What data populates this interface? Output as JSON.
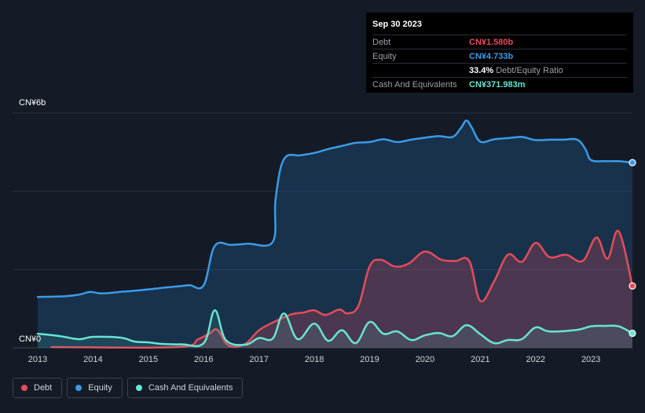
{
  "tooltip": {
    "date": "Sep 30 2023",
    "rows": [
      {
        "label": "Debt",
        "value": "CN¥1.580b",
        "color": "#e64c5a"
      },
      {
        "label": "Equity",
        "value": "CN¥4.733b",
        "color": "#3a9be8"
      },
      {
        "label": "",
        "value": "33.4%",
        "suffix": "Debt/Equity Ratio",
        "color": "#ffffff"
      },
      {
        "label": "Cash And Equivalents",
        "value": "CN¥371.983m",
        "color": "#67e5d2"
      }
    ]
  },
  "legend": [
    {
      "label": "Debt",
      "color": "#e64c5a"
    },
    {
      "label": "Equity",
      "color": "#3a9be8"
    },
    {
      "label": "Cash And Equivalents",
      "color": "#67e5d2"
    }
  ],
  "chart_data": {
    "type": "area",
    "ylabel_top": "CN¥6b",
    "ylabel_bottom": "CN¥0",
    "ylim": [
      0,
      6
    ],
    "xlim": [
      2013,
      2023.75
    ],
    "x_ticks": [
      "2013",
      "2014",
      "2015",
      "2016",
      "2017",
      "2018",
      "2019",
      "2020",
      "2021",
      "2022",
      "2023"
    ],
    "grid": true,
    "series": [
      {
        "name": "Equity",
        "color": "#3a9be8",
        "points": [
          [
            2013.0,
            1.3
          ],
          [
            2013.5,
            1.32
          ],
          [
            2013.75,
            1.36
          ],
          [
            2013.95,
            1.43
          ],
          [
            2014.15,
            1.39
          ],
          [
            2014.5,
            1.43
          ],
          [
            2014.9,
            1.48
          ],
          [
            2015.3,
            1.54
          ],
          [
            2015.6,
            1.58
          ],
          [
            2015.75,
            1.6
          ],
          [
            2016.0,
            1.6
          ],
          [
            2016.2,
            2.6
          ],
          [
            2016.5,
            2.63
          ],
          [
            2016.8,
            2.66
          ],
          [
            2017.25,
            2.71
          ],
          [
            2017.3,
            3.8
          ],
          [
            2017.45,
            4.82
          ],
          [
            2017.75,
            4.92
          ],
          [
            2018.0,
            4.98
          ],
          [
            2018.25,
            5.08
          ],
          [
            2018.5,
            5.16
          ],
          [
            2018.75,
            5.24
          ],
          [
            2019.0,
            5.26
          ],
          [
            2019.25,
            5.33
          ],
          [
            2019.5,
            5.26
          ],
          [
            2019.75,
            5.32
          ],
          [
            2020.0,
            5.37
          ],
          [
            2020.25,
            5.41
          ],
          [
            2020.5,
            5.39
          ],
          [
            2020.65,
            5.62
          ],
          [
            2020.75,
            5.81
          ],
          [
            2020.85,
            5.62
          ],
          [
            2021.0,
            5.27
          ],
          [
            2021.25,
            5.33
          ],
          [
            2021.5,
            5.36
          ],
          [
            2021.75,
            5.39
          ],
          [
            2022.0,
            5.31
          ],
          [
            2022.25,
            5.32
          ],
          [
            2022.5,
            5.32
          ],
          [
            2022.75,
            5.32
          ],
          [
            2022.9,
            5.08
          ],
          [
            2023.0,
            4.8
          ],
          [
            2023.25,
            4.77
          ],
          [
            2023.5,
            4.77
          ],
          [
            2023.75,
            4.733
          ]
        ]
      },
      {
        "name": "Debt",
        "color": "#e64c5a",
        "points": [
          [
            2013.25,
            0.02
          ],
          [
            2015.5,
            0.02
          ],
          [
            2015.9,
            0.22
          ],
          [
            2016.1,
            0.36
          ],
          [
            2016.25,
            0.46
          ],
          [
            2016.45,
            0.06
          ],
          [
            2016.75,
            0.1
          ],
          [
            2017.0,
            0.45
          ],
          [
            2017.3,
            0.68
          ],
          [
            2017.6,
            0.86
          ],
          [
            2017.8,
            0.9
          ],
          [
            2018.0,
            0.96
          ],
          [
            2018.2,
            0.84
          ],
          [
            2018.45,
            0.98
          ],
          [
            2018.6,
            0.88
          ],
          [
            2018.8,
            1.08
          ],
          [
            2019.0,
            2.08
          ],
          [
            2019.2,
            2.25
          ],
          [
            2019.45,
            2.08
          ],
          [
            2019.7,
            2.15
          ],
          [
            2020.0,
            2.46
          ],
          [
            2020.3,
            2.25
          ],
          [
            2020.55,
            2.22
          ],
          [
            2020.8,
            2.22
          ],
          [
            2021.0,
            1.2
          ],
          [
            2021.25,
            1.7
          ],
          [
            2021.5,
            2.38
          ],
          [
            2021.75,
            2.2
          ],
          [
            2022.0,
            2.68
          ],
          [
            2022.25,
            2.32
          ],
          [
            2022.55,
            2.38
          ],
          [
            2022.85,
            2.22
          ],
          [
            2023.1,
            2.82
          ],
          [
            2023.3,
            2.28
          ],
          [
            2023.5,
            2.98
          ],
          [
            2023.75,
            1.58
          ]
        ]
      },
      {
        "name": "Cash And Equivalents",
        "color": "#67e5d2",
        "points": [
          [
            2013.0,
            0.36
          ],
          [
            2013.4,
            0.3
          ],
          [
            2013.75,
            0.22
          ],
          [
            2014.0,
            0.28
          ],
          [
            2014.5,
            0.26
          ],
          [
            2014.75,
            0.16
          ],
          [
            2015.0,
            0.14
          ],
          [
            2015.25,
            0.1
          ],
          [
            2015.6,
            0.09
          ],
          [
            2016.0,
            0.12
          ],
          [
            2016.2,
            0.96
          ],
          [
            2016.4,
            0.2
          ],
          [
            2016.75,
            0.08
          ],
          [
            2017.0,
            0.25
          ],
          [
            2017.25,
            0.24
          ],
          [
            2017.45,
            0.88
          ],
          [
            2017.7,
            0.22
          ],
          [
            2018.0,
            0.62
          ],
          [
            2018.25,
            0.18
          ],
          [
            2018.5,
            0.45
          ],
          [
            2018.75,
            0.12
          ],
          [
            2019.0,
            0.66
          ],
          [
            2019.25,
            0.36
          ],
          [
            2019.5,
            0.42
          ],
          [
            2019.75,
            0.2
          ],
          [
            2020.0,
            0.32
          ],
          [
            2020.25,
            0.38
          ],
          [
            2020.5,
            0.3
          ],
          [
            2020.75,
            0.58
          ],
          [
            2021.0,
            0.35
          ],
          [
            2021.25,
            0.12
          ],
          [
            2021.5,
            0.2
          ],
          [
            2021.75,
            0.22
          ],
          [
            2022.0,
            0.52
          ],
          [
            2022.25,
            0.42
          ],
          [
            2022.75,
            0.46
          ],
          [
            2023.0,
            0.55
          ],
          [
            2023.25,
            0.56
          ],
          [
            2023.5,
            0.55
          ],
          [
            2023.75,
            0.372
          ]
        ]
      }
    ]
  }
}
